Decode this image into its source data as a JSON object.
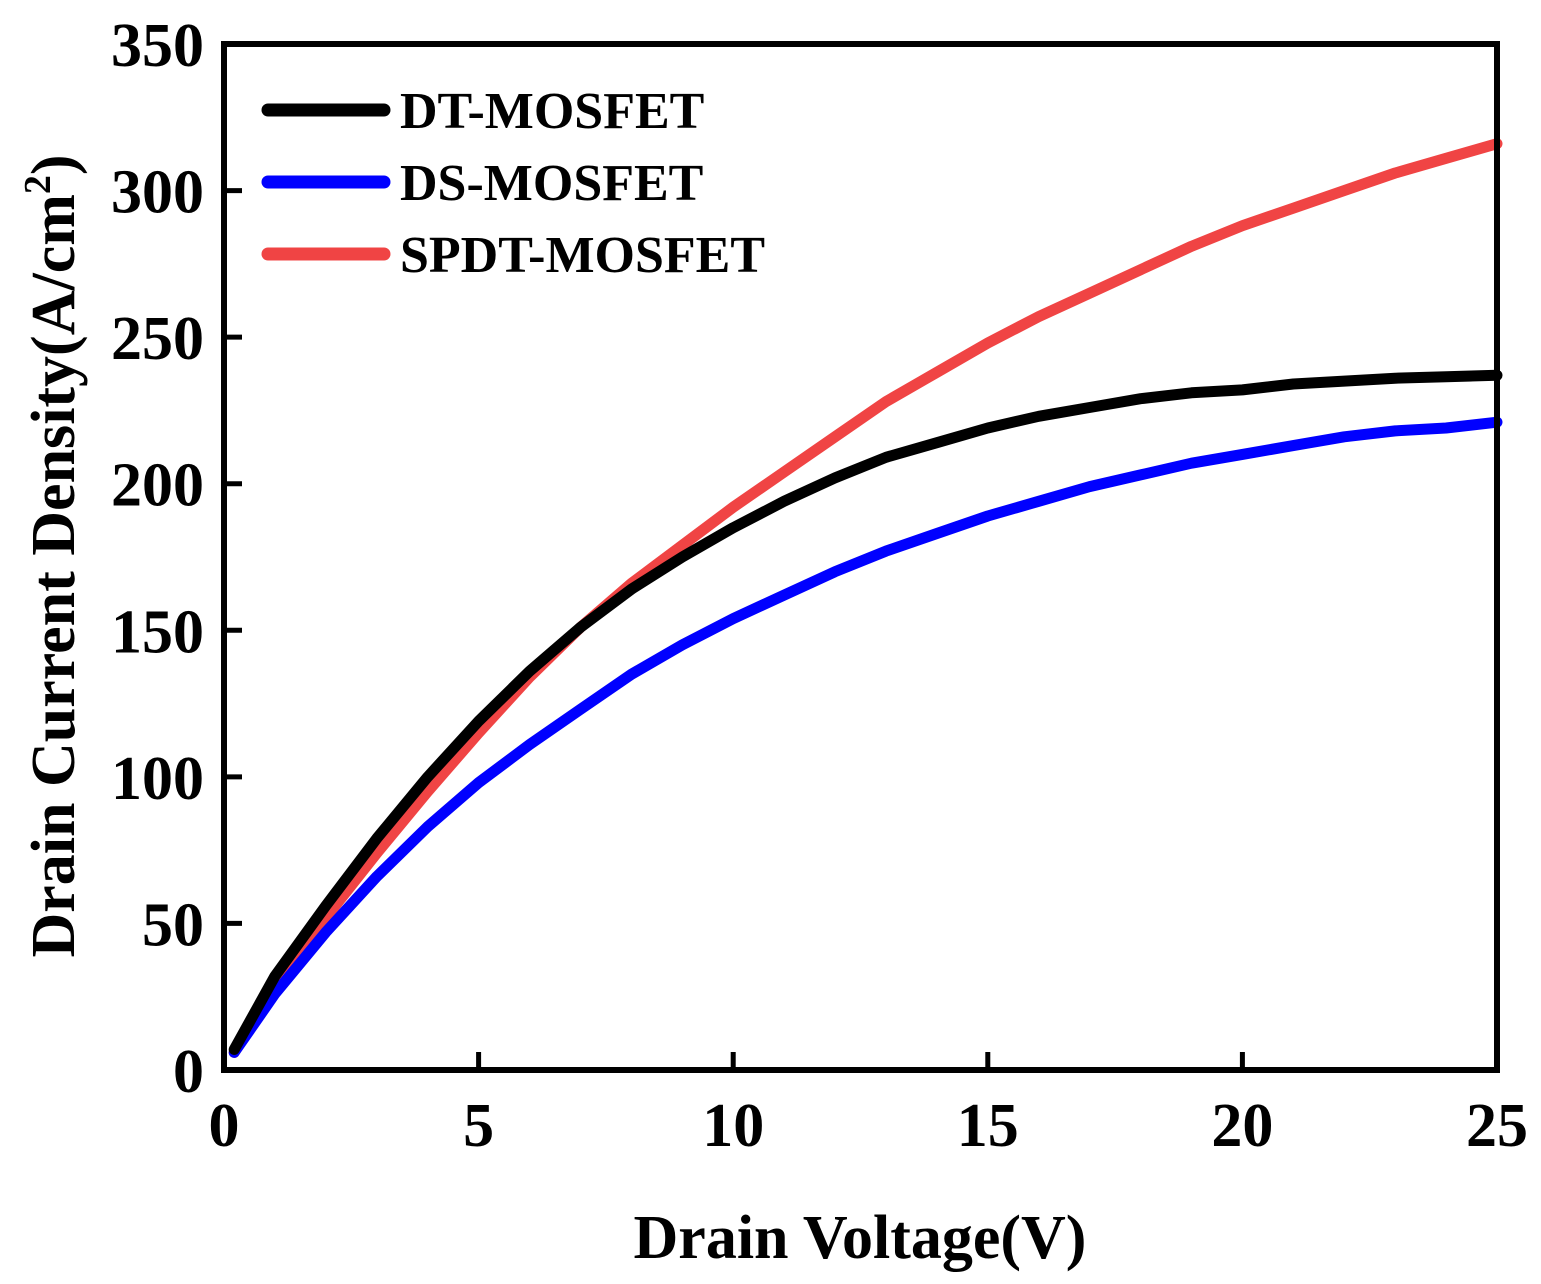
{
  "chart_data": {
    "type": "line",
    "title": "",
    "xlabel": "Drain Voltage(V)",
    "ylabel_main": "Drain Current Density(A/cm",
    "ylabel_sup": "2",
    "ylabel_close": ")",
    "xlim": [
      0,
      25
    ],
    "ylim": [
      0,
      350
    ],
    "xticks": [
      0,
      5,
      10,
      15,
      20,
      25
    ],
    "yticks": [
      0,
      50,
      100,
      150,
      200,
      250,
      300,
      350
    ],
    "grid": false,
    "legend_position": "top-left",
    "series": [
      {
        "name": "DT-MOSFET",
        "color": "#000000",
        "x": [
          0.2,
          1,
          2,
          3,
          4,
          5,
          6,
          7,
          8,
          9,
          10,
          11,
          12,
          13,
          14,
          15,
          16,
          17,
          18,
          19,
          20,
          21,
          22,
          23,
          24,
          25
        ],
        "y": [
          7,
          32,
          56,
          79,
          100,
          119,
          136,
          151,
          164,
          175,
          185,
          194,
          202,
          209,
          214,
          219,
          223,
          226,
          229,
          231,
          232,
          234,
          235,
          236,
          236.5,
          237
        ]
      },
      {
        "name": "DS-MOSFET",
        "color": "#0000ff",
        "x": [
          0.2,
          1,
          2,
          3,
          4,
          5,
          6,
          7,
          8,
          9,
          10,
          11,
          12,
          13,
          14,
          15,
          16,
          17,
          18,
          19,
          20,
          21,
          22,
          23,
          24,
          25
        ],
        "y": [
          6,
          26,
          47,
          66,
          83,
          98,
          111,
          123,
          135,
          145,
          154,
          162,
          170,
          177,
          183,
          189,
          194,
          199,
          203,
          207,
          210,
          213,
          216,
          218,
          219,
          221
        ]
      },
      {
        "name": "SPDT-MOSFET",
        "color": "#f04444",
        "x": [
          0.2,
          1,
          2,
          3,
          4,
          5,
          6,
          7,
          8,
          9,
          10,
          11,
          12,
          13,
          14,
          15,
          16,
          17,
          18,
          19,
          20,
          21,
          22,
          23,
          24,
          25
        ],
        "y": [
          6,
          28,
          52,
          74,
          95,
          115,
          134,
          151,
          166,
          179,
          192,
          204,
          216,
          228,
          238,
          248,
          257,
          265,
          273,
          281,
          288,
          294,
          300,
          306,
          311,
          316
        ]
      }
    ]
  }
}
